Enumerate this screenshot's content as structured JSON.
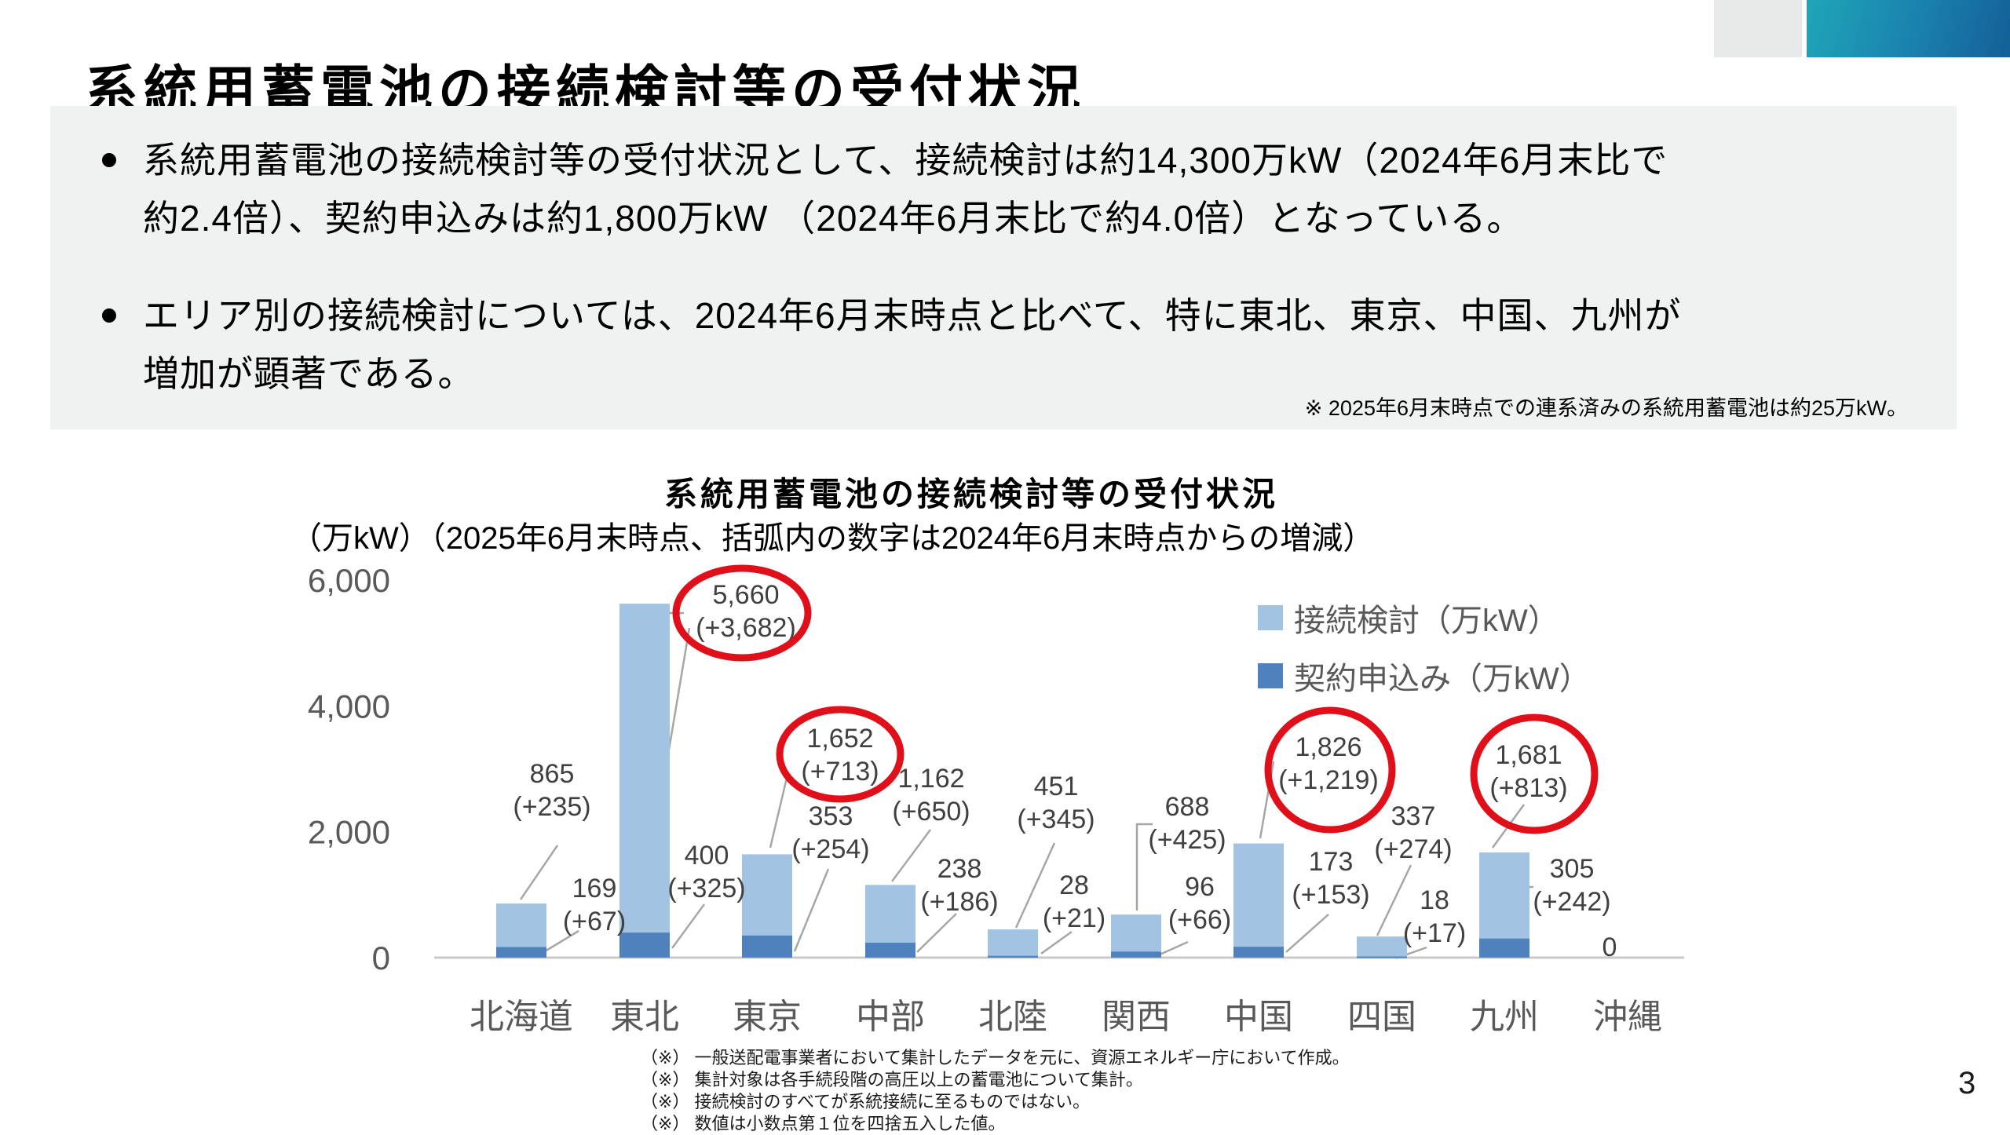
{
  "slide": {
    "title": "系統用蓄電池の接続検討等の受付状況",
    "page_number": "3"
  },
  "summary": {
    "bullets": [
      {
        "lines": [
          "系統用蓄電池の接続検討等の受付状況として、接続検討は約14,300万kW（2024年6月末比で",
          "約2.4倍）、契約申込みは約1,800万kW （2024年6月末比で約4.0倍）となっている。"
        ]
      },
      {
        "lines": [
          "エリア別の接続検討については、2024年6月末時点と比べて、特に東北、東京、中国、九州が",
          "増加が顕著である。"
        ]
      }
    ],
    "note": "※ 2025年6月末時点での連系済みの系統用蓄電池は約25万kW。"
  },
  "chart_data": {
    "type": "bar",
    "title": "系統用蓄電池の接続検討等の受付状況",
    "unit_label": "（万kW）",
    "subtitle": "（2025年6月末時点、括弧内の数字は2024年6月末時点からの増減）",
    "ylim": [
      0,
      6000
    ],
    "yticks": [
      "0",
      "2,000",
      "4,000",
      "6,000"
    ],
    "grid": false,
    "legend_position": "top-right",
    "categories": [
      "北海道",
      "東北",
      "東京",
      "中部",
      "北陸",
      "関西",
      "中国",
      "四国",
      "九州",
      "沖縄"
    ],
    "series": [
      {
        "name": "接続検討（万kW）",
        "color": "#a3c3e3",
        "values": [
          865,
          5660,
          1652,
          1162,
          451,
          688,
          1826,
          337,
          1681,
          0
        ],
        "labels": [
          "865",
          "5,660",
          "1,652",
          "1,162",
          "451",
          "688",
          "1,826",
          "337",
          "1,681",
          "0"
        ],
        "deltas": [
          "(+235)",
          "(+3,682)",
          "(+713)",
          "(+650)",
          "(+345)",
          "(+425)",
          "(+1,219)",
          "(+274)",
          "(+813)",
          ""
        ],
        "circled": [
          false,
          true,
          true,
          false,
          false,
          false,
          true,
          false,
          true,
          false
        ]
      },
      {
        "name": "契約申込み（万kW）",
        "color": "#4f81bd",
        "values": [
          169,
          400,
          353,
          238,
          28,
          96,
          173,
          18,
          305,
          0
        ],
        "labels": [
          "169",
          "400",
          "353",
          "238",
          "28",
          "96",
          "173",
          "18",
          "305",
          ""
        ],
        "deltas": [
          "(+67)",
          "(+325)",
          "(+254)",
          "(+186)",
          "(+21)",
          "(+66)",
          "(+153)",
          "(+17)",
          "(+242)",
          ""
        ]
      }
    ]
  },
  "footnotes": [
    "（※） 一般送配電事業者において集計したデータを元に、資源エネルギー庁において作成。",
    "（※） 集計対象は各手続段階の高圧以上の蓄電池について集計。",
    "（※） 接続検討のすべてが系統接続に至るものではない。",
    "（※） 数値は小数点第１位を四捨五入した値。"
  ],
  "colors": {
    "study_bar": "#a3c3e3",
    "contract_bar": "#4f81bd",
    "highlight_circle": "#e0101a",
    "axis_text": "#595959",
    "leader_line": "#a6a6a6",
    "deco_teal": "#1fa6b8",
    "deco_blue": "#145f97"
  }
}
